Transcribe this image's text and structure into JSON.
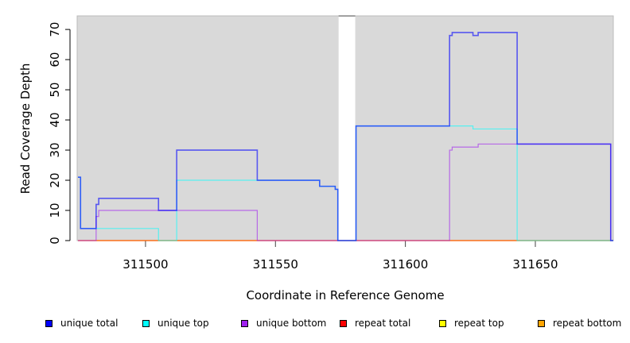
{
  "chart_data": {
    "type": "line",
    "step": true,
    "title": "",
    "xlabel": "Coordinate in Reference Genome",
    "ylabel": "Read Coverage Depth",
    "xlim": [
      311473.7,
      311680
    ],
    "ylim": [
      0,
      74.5
    ],
    "xticks": [
      311500,
      311550,
      311600,
      311650
    ],
    "xtick_labels": [
      "311500",
      "311550",
      "311600",
      "311650"
    ],
    "yticks": [
      0,
      10,
      20,
      30,
      40,
      50,
      60,
      70
    ],
    "ytick_labels": [
      "0",
      "10",
      "20",
      "30",
      "40",
      "50",
      "60",
      "70"
    ],
    "no_data_region": [
      311574.3,
      311580.7
    ],
    "background": "#d9d9d9",
    "series": [
      {
        "name": "unique total",
        "color": "#0000ff",
        "points": [
          [
            311474,
            21
          ],
          [
            311475,
            4
          ],
          [
            311481,
            12
          ],
          [
            311482,
            14
          ],
          [
            311505,
            10
          ],
          [
            311512,
            30
          ],
          [
            311543,
            20
          ],
          [
            311567,
            18
          ],
          [
            311573,
            17
          ],
          [
            311574,
            0
          ],
          [
            311581,
            38
          ],
          [
            311617,
            68
          ],
          [
            311618,
            69
          ],
          [
            311626,
            68
          ],
          [
            311628,
            69
          ],
          [
            311643,
            32
          ],
          [
            311679,
            0
          ],
          [
            311680,
            0
          ]
        ]
      },
      {
        "name": "unique top",
        "color": "#00ffff",
        "points": [
          [
            311474,
            21
          ],
          [
            311475,
            4
          ],
          [
            311481,
            4
          ],
          [
            311505,
            0
          ],
          [
            311512,
            20
          ],
          [
            311567,
            18
          ],
          [
            311573,
            17
          ],
          [
            311574,
            0
          ],
          [
            311581,
            38
          ],
          [
            311626,
            37
          ],
          [
            311643,
            0
          ],
          [
            311680,
            0
          ]
        ]
      },
      {
        "name": "unique bottom",
        "color": "#a020f0",
        "points": [
          [
            311474,
            0
          ],
          [
            311481,
            8
          ],
          [
            311482,
            10
          ],
          [
            311543,
            0
          ],
          [
            311617,
            30
          ],
          [
            311618,
            31
          ],
          [
            311628,
            32
          ],
          [
            311679,
            0
          ],
          [
            311680,
            0
          ]
        ]
      },
      {
        "name": "repeat total",
        "color": "#ff0000",
        "points": [
          [
            311474,
            0
          ],
          [
            311680,
            0
          ]
        ]
      },
      {
        "name": "repeat top",
        "color": "#ffff00",
        "points": [
          [
            311474,
            0
          ],
          [
            311680,
            0
          ]
        ]
      },
      {
        "name": "repeat bottom",
        "color": "#ffa500",
        "points": [
          [
            311474,
            0
          ],
          [
            311680,
            0
          ]
        ]
      }
    ],
    "legend_position": "bottom"
  }
}
